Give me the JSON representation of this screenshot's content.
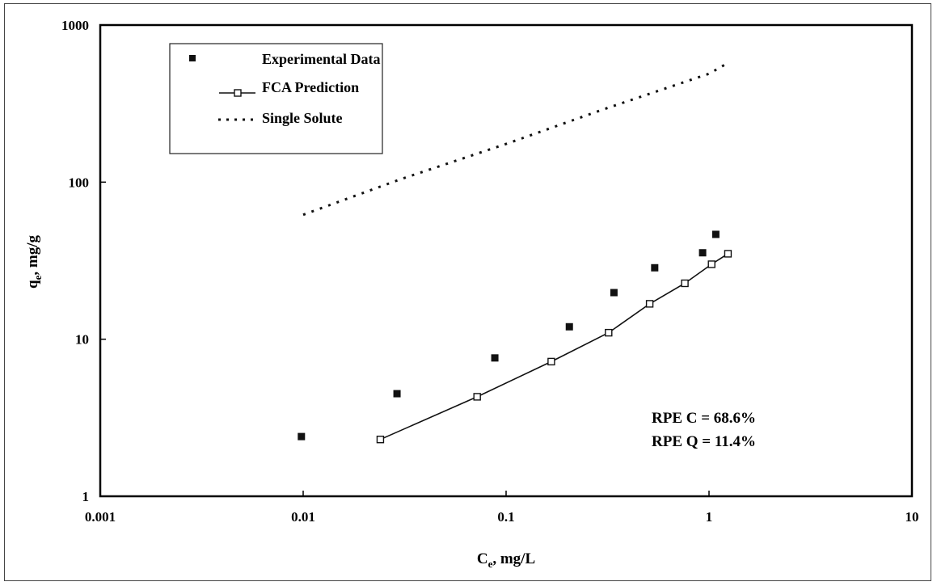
{
  "chart_data": {
    "type": "scatter",
    "x_scale": "log",
    "y_scale": "log",
    "xlim": [
      0.001,
      10
    ],
    "ylim": [
      1,
      1000
    ],
    "xlabel": "C_e, mg/L",
    "xlabel_main": "C",
    "xlabel_sub": "e",
    "xlabel_rest": ", mg/L",
    "ylabel": "q_e, mg/g",
    "ylabel_main": "q",
    "ylabel_sub": "e",
    "ylabel_rest": ", mg/g",
    "x_tick_labels": [
      "0.001",
      "0.01",
      "0.1",
      "1",
      "10"
    ],
    "y_tick_labels": [
      "1",
      "10",
      "100",
      "1000"
    ],
    "grid": false,
    "legend_position": "top-left",
    "series": [
      {
        "name": "Experimental Data",
        "style": "filled-square-markers",
        "x": [
          0.0098,
          0.029,
          0.088,
          0.205,
          0.34,
          0.54,
          0.93,
          1.08
        ],
        "y": [
          2.4,
          4.5,
          7.6,
          12.0,
          19.8,
          28.5,
          35.5,
          46.5
        ]
      },
      {
        "name": "FCA Prediction",
        "style": "line-with-open-square-markers",
        "x": [
          0.024,
          0.072,
          0.167,
          0.32,
          0.51,
          0.76,
          1.03,
          1.24
        ],
        "y": [
          2.3,
          4.3,
          7.2,
          11.0,
          16.8,
          22.7,
          30.0,
          35.0
        ]
      },
      {
        "name": "Single Solute",
        "style": "dotted-line",
        "x": [
          0.01,
          0.03,
          0.1,
          0.3,
          1.0,
          1.2
        ],
        "y": [
          62,
          104,
          175,
          290,
          490,
          560
        ]
      }
    ],
    "annotations": [
      "RPE C = 68.6%",
      "RPE Q = 11.4%"
    ]
  }
}
